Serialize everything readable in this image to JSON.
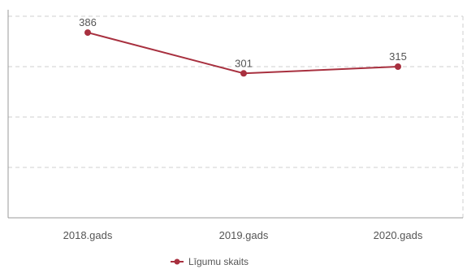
{
  "chart_data": {
    "type": "line",
    "title": "",
    "xlabel": "",
    "ylabel": "",
    "categories": [
      "2018.gads",
      "2019.gads",
      "2020.gads"
    ],
    "series": [
      {
        "name": "Līgumu skaits",
        "values": [
          386,
          301,
          315
        ],
        "color": "#a8303f"
      }
    ],
    "ylim": [
      0,
      420
    ],
    "y_gridlines": [
      105,
      210,
      315,
      420
    ],
    "grid": true,
    "legend": "bottom-center"
  }
}
